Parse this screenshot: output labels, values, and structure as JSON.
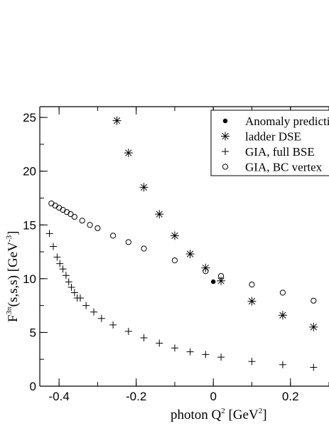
{
  "chart_data": {
    "type": "scatter",
    "title": "",
    "xlabel": {
      "base": "photon  Q",
      "sup": "2",
      "unit_open": "  [GeV",
      "unit_sup": "2",
      "unit_close": "]"
    },
    "ylabel": {
      "F": "F",
      "sup": "3π",
      "rest": "(s,s,s)",
      "unit_open": "  [GeV",
      "unit_sup": "-3",
      "unit_close": "]"
    },
    "xlim": [
      -0.45,
      0.3
    ],
    "ylim": [
      0,
      26
    ],
    "x_ticks": [
      -0.4,
      -0.2,
      0,
      0.2
    ],
    "x_tick_labels": [
      "-0.4",
      "-0.2",
      "0",
      "0.2"
    ],
    "y_ticks": [
      0,
      5,
      10,
      15,
      20,
      25
    ],
    "y_tick_labels": [
      "0",
      "5",
      "10",
      "15",
      "20",
      "25"
    ],
    "grid": false,
    "legend_position": "top-right",
    "series": [
      {
        "name": "Anomaly prediction",
        "marker": "filled-circle",
        "points": [
          [
            0.0,
            9.72
          ]
        ]
      },
      {
        "name": "ladder DSE",
        "marker": "asterisk",
        "points": [
          [
            -0.25,
            24.7
          ],
          [
            -0.22,
            21.7
          ],
          [
            -0.18,
            18.5
          ],
          [
            -0.14,
            16.0
          ],
          [
            -0.1,
            14.0
          ],
          [
            -0.06,
            12.3
          ],
          [
            -0.02,
            11.0
          ],
          [
            0.02,
            9.8
          ],
          [
            0.1,
            7.9
          ],
          [
            0.18,
            6.6
          ],
          [
            0.26,
            5.5
          ]
        ]
      },
      {
        "name": "GIA, full BSE",
        "marker": "plus",
        "points": [
          [
            -0.425,
            14.2
          ],
          [
            -0.415,
            13.0
          ],
          [
            -0.405,
            12.0
          ],
          [
            -0.398,
            11.4
          ],
          [
            -0.39,
            10.9
          ],
          [
            -0.382,
            10.3
          ],
          [
            -0.375,
            9.7
          ],
          [
            -0.368,
            9.2
          ],
          [
            -0.36,
            8.7
          ],
          [
            -0.353,
            8.2
          ],
          [
            -0.345,
            8.2
          ],
          [
            -0.33,
            7.5
          ],
          [
            -0.31,
            6.9
          ],
          [
            -0.29,
            6.3
          ],
          [
            -0.26,
            5.7
          ],
          [
            -0.22,
            5.1
          ],
          [
            -0.18,
            4.5
          ],
          [
            -0.14,
            4.0
          ],
          [
            -0.1,
            3.55
          ],
          [
            -0.06,
            3.2
          ],
          [
            -0.02,
            2.95
          ],
          [
            0.02,
            2.7
          ],
          [
            0.1,
            2.3
          ],
          [
            0.18,
            2.0
          ],
          [
            0.26,
            1.75
          ]
        ]
      },
      {
        "name": "GIA, BC vertex",
        "marker": "open-circle",
        "points": [
          [
            -0.42,
            17.0
          ],
          [
            -0.41,
            16.8
          ],
          [
            -0.4,
            16.6
          ],
          [
            -0.39,
            16.4
          ],
          [
            -0.38,
            16.2
          ],
          [
            -0.37,
            16.0
          ],
          [
            -0.36,
            15.75
          ],
          [
            -0.34,
            15.4
          ],
          [
            -0.32,
            15.0
          ],
          [
            -0.3,
            14.7
          ],
          [
            -0.26,
            14.0
          ],
          [
            -0.22,
            13.4
          ],
          [
            -0.18,
            12.8
          ],
          [
            -0.1,
            11.7
          ],
          [
            -0.02,
            10.7
          ],
          [
            0.02,
            10.25
          ],
          [
            0.1,
            9.45
          ],
          [
            0.18,
            8.7
          ],
          [
            0.26,
            7.95
          ]
        ]
      }
    ]
  }
}
